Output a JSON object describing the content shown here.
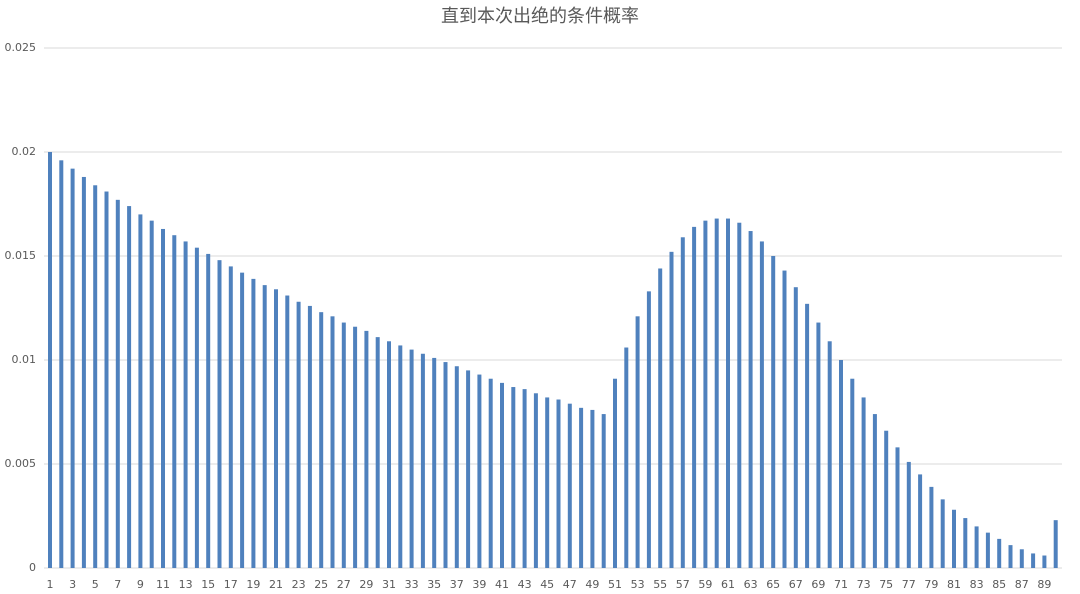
{
  "chart_data": {
    "type": "bar",
    "title": "直到本次出绝的条件概率",
    "categories": [
      "1",
      null,
      "3",
      null,
      "5",
      null,
      "7",
      null,
      "9",
      null,
      "11",
      null,
      "13",
      null,
      "15",
      null,
      "17",
      null,
      "19",
      null,
      "21",
      null,
      "23",
      null,
      "25",
      null,
      "27",
      null,
      "29",
      null,
      "31",
      null,
      "33",
      null,
      "35",
      null,
      "37",
      null,
      "39",
      null,
      "41",
      null,
      "43",
      null,
      "45",
      null,
      "47",
      null,
      "49",
      null,
      "51",
      null,
      "53",
      null,
      "55",
      null,
      "57",
      null,
      "59",
      null,
      "61",
      null,
      "63",
      null,
      "65",
      null,
      "67",
      null,
      "69",
      null,
      "71",
      null,
      "73",
      null,
      "75",
      null,
      "77",
      null,
      "79",
      null,
      "81",
      null,
      "83",
      null,
      "85",
      null,
      "87",
      null,
      "89",
      null
    ],
    "values": [
      0.02,
      0.0196,
      0.0192,
      0.0188,
      0.0184,
      0.0181,
      0.0177,
      0.0174,
      0.017,
      0.0167,
      0.0163,
      0.016,
      0.0157,
      0.0154,
      0.0151,
      0.0148,
      0.0145,
      0.0142,
      0.0139,
      0.0136,
      0.0134,
      0.0131,
      0.0128,
      0.0126,
      0.0123,
      0.0121,
      0.0118,
      0.0116,
      0.0114,
      0.0111,
      0.0109,
      0.0107,
      0.0105,
      0.0103,
      0.0101,
      0.0099,
      0.0097,
      0.0095,
      0.0093,
      0.0091,
      0.0089,
      0.0087,
      0.0086,
      0.0084,
      0.0082,
      0.0081,
      0.0079,
      0.0077,
      0.0076,
      0.0074,
      0.0091,
      0.0106,
      0.0121,
      0.0133,
      0.0144,
      0.0152,
      0.0159,
      0.0164,
      0.0167,
      0.0168,
      0.0168,
      0.0166,
      0.0162,
      0.0157,
      0.015,
      0.0143,
      0.0135,
      0.0127,
      0.0118,
      0.0109,
      0.01,
      0.0091,
      0.0082,
      0.0074,
      0.0066,
      0.0058,
      0.0051,
      0.0045,
      0.0039,
      0.0033,
      0.0028,
      0.0024,
      0.002,
      0.0017,
      0.0014,
      0.0011,
      0.0009,
      0.0007,
      0.0006,
      0.0023
    ],
    "color": "#4f81bd",
    "ylim": [
      0,
      0.025
    ],
    "yticks": [
      0,
      0.005,
      0.01,
      0.015,
      0.02,
      0.025
    ],
    "grid": true
  }
}
